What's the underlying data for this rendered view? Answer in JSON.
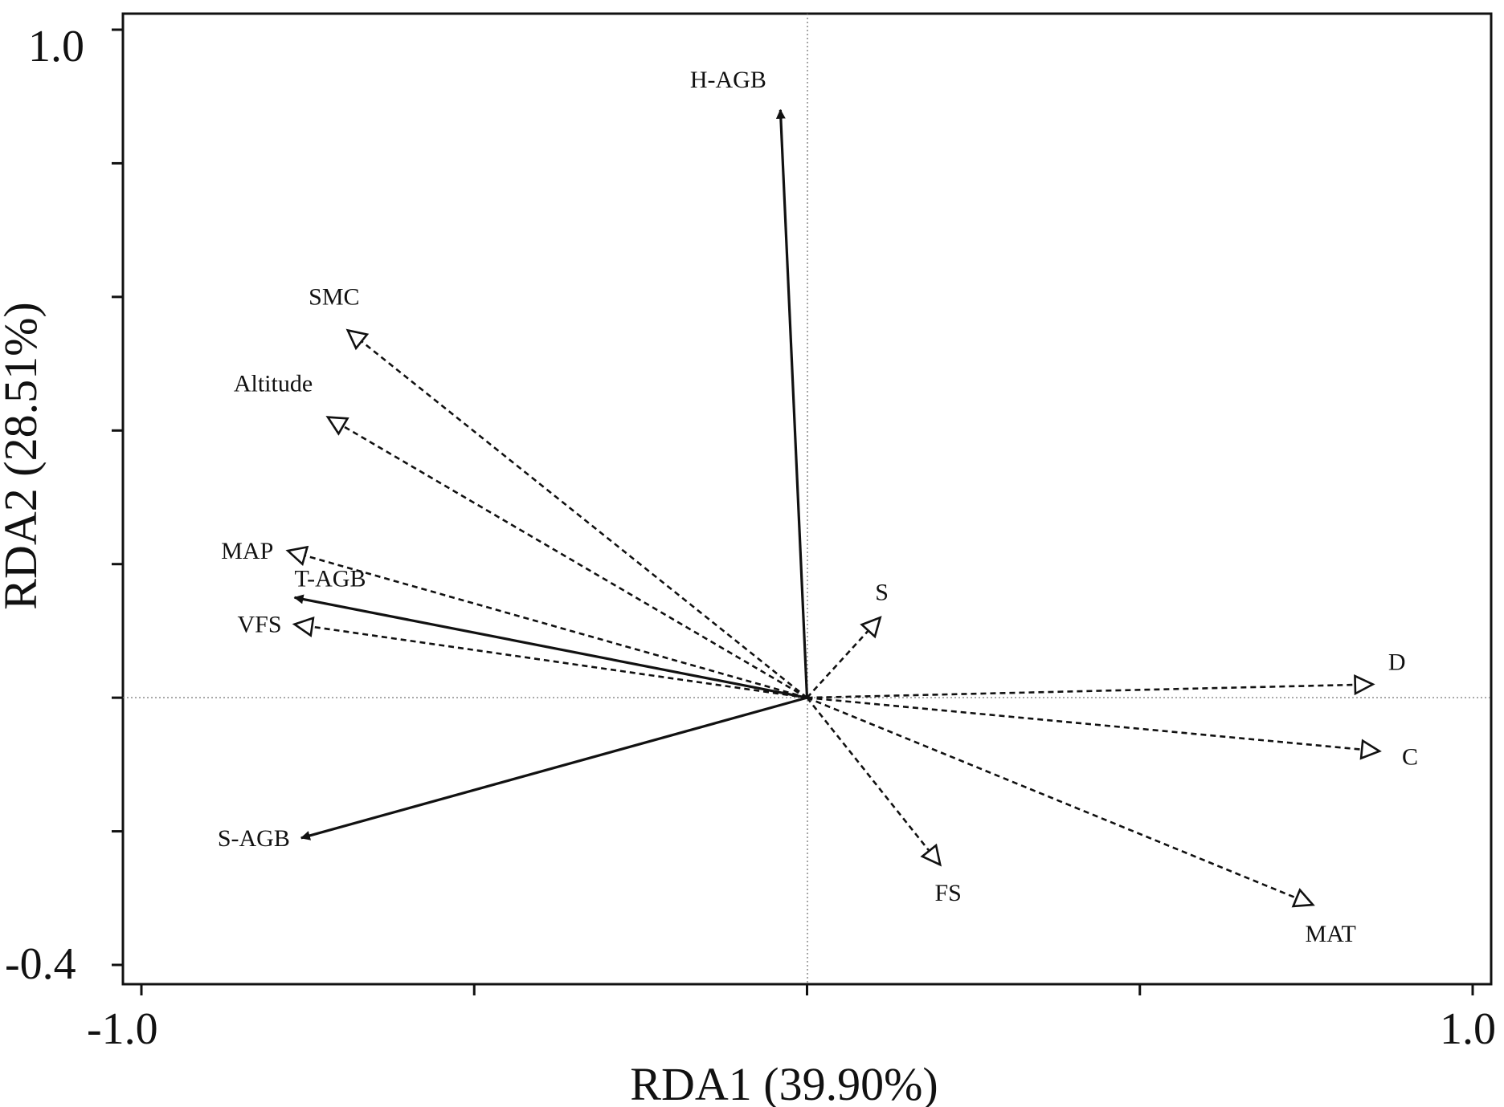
{
  "chart_data": {
    "type": "scatter",
    "subtype": "rda-biplot",
    "title": "",
    "xlabel": "RDA1 (39.90%)",
    "ylabel": "RDA2 (28.51%)",
    "xlim": [
      -1.0,
      1.0
    ],
    "ylim": [
      -0.4,
      1.0
    ],
    "x_tick_labels": [
      "-1.0",
      "1.0"
    ],
    "y_tick_labels": [
      "1.0",
      "-0.4"
    ],
    "reference_lines": "dotted lines at x=0 and y=0",
    "response_vectors": [
      {
        "label": "H-AGB",
        "x": -0.04,
        "y": 0.88
      },
      {
        "label": "T-AGB",
        "x": -0.77,
        "y": 0.15
      },
      {
        "label": "S-AGB",
        "x": -0.76,
        "y": -0.21
      }
    ],
    "explanatory_vectors": [
      {
        "label": "SMC",
        "x": -0.69,
        "y": 0.55
      },
      {
        "label": "Altitude",
        "x": -0.72,
        "y": 0.42
      },
      {
        "label": "MAP",
        "x": -0.78,
        "y": 0.22
      },
      {
        "label": "VFS",
        "x": -0.77,
        "y": 0.11
      },
      {
        "label": "S",
        "x": 0.11,
        "y": 0.12
      },
      {
        "label": "D",
        "x": 0.85,
        "y": 0.02
      },
      {
        "label": "C",
        "x": 0.86,
        "y": -0.08
      },
      {
        "label": "FS",
        "x": 0.2,
        "y": -0.25
      },
      {
        "label": "MAT",
        "x": 0.76,
        "y": -0.31
      }
    ]
  }
}
